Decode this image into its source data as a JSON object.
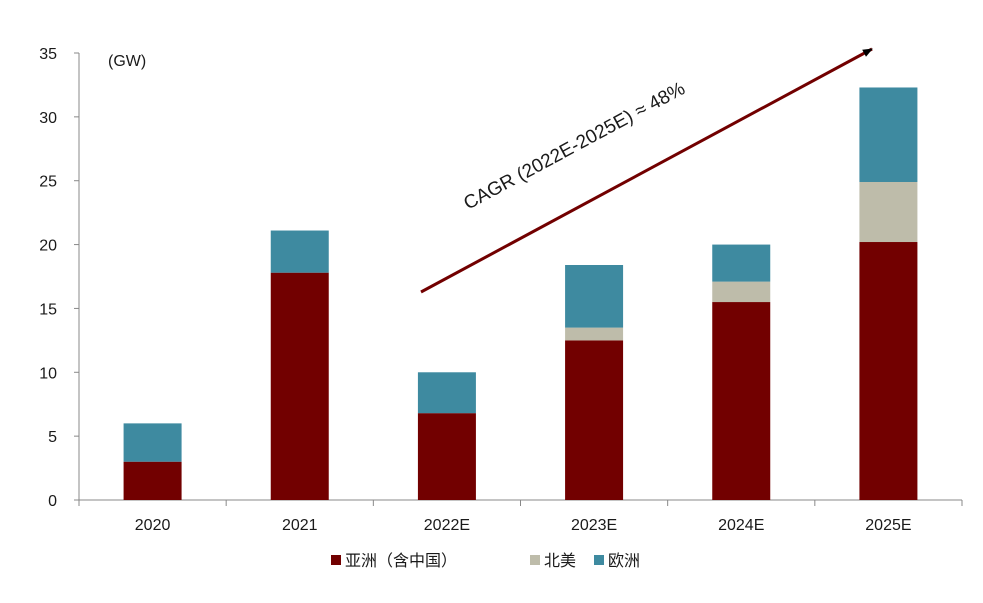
{
  "chart_data": {
    "type": "bar",
    "stacked": true,
    "unit": "(GW)",
    "categories": [
      "2020",
      "2021",
      "2022E",
      "2023E",
      "2024E",
      "2025E"
    ],
    "series": [
      {
        "name": "亚洲（含中国）",
        "color": "#720000",
        "values": [
          3.0,
          17.8,
          6.8,
          12.5,
          15.5,
          20.2
        ]
      },
      {
        "name": "北美",
        "color": "#bebcaa",
        "values": [
          0.0,
          0.0,
          0.0,
          1.0,
          1.6,
          4.7
        ]
      },
      {
        "name": "欧洲",
        "color": "#3e8aa0",
        "values": [
          3.0,
          3.3,
          3.2,
          4.9,
          2.9,
          7.4
        ]
      }
    ],
    "ylim": [
      0,
      35
    ],
    "yticks": [
      "0",
      "5",
      "10",
      "15",
      "20",
      "25",
      "30",
      "35"
    ],
    "grid": false,
    "legend_position": "bottom",
    "annotation": {
      "text": "CAGR (2022E-2025E) ≈ 48%",
      "arrow_color": "#720000"
    }
  }
}
